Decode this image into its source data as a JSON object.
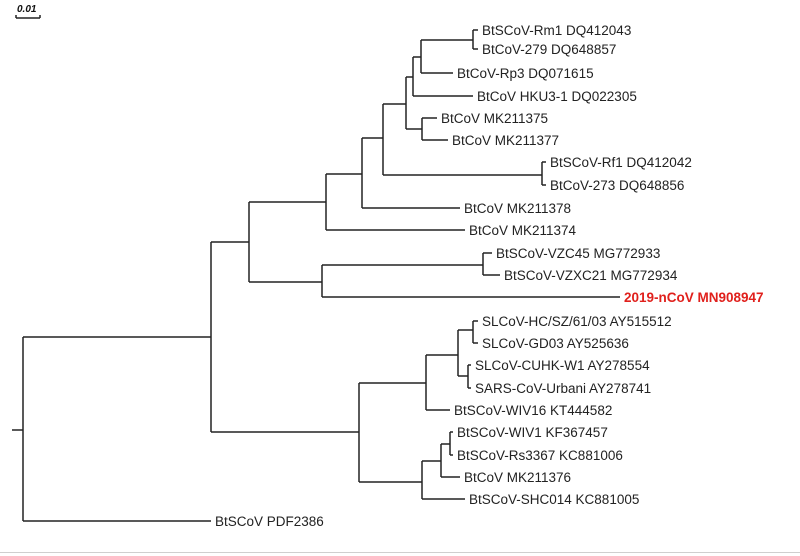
{
  "scale_bar": {
    "label": "0.01",
    "value": 0.01
  },
  "highlight_color": "#e0201c",
  "leaves": [
    {
      "label": "BtSCoV-Rm1 DQ412043"
    },
    {
      "label": "BtCoV-279 DQ648857"
    },
    {
      "label": "BtCoV-Rp3 DQ071615"
    },
    {
      "label": "BtCoV HKU3-1 DQ022305"
    },
    {
      "label": "BtCoV MK211375"
    },
    {
      "label": "BtCoV MK211377"
    },
    {
      "label": "BtSCoV-Rf1 DQ412042"
    },
    {
      "label": "BtCoV-273 DQ648856"
    },
    {
      "label": "BtCoV MK211378"
    },
    {
      "label": "BtCoV MK211374"
    },
    {
      "label": "BtSCoV-VZC45 MG772933"
    },
    {
      "label": "BtSCoV-VZXC21 MG772934"
    },
    {
      "label": "2019-nCoV MN908947",
      "highlight": true
    },
    {
      "label": "SLCoV-HC/SZ/61/03 AY515512"
    },
    {
      "label": "SLCoV-GD03 AY525636"
    },
    {
      "label": "SLCoV-CUHK-W1 AY278554"
    },
    {
      "label": "SARS-CoV-Urbani AY278741"
    },
    {
      "label": "BtSCoV-WIV16 KT444582"
    },
    {
      "label": "BtSCoV-WIV1 KF367457"
    },
    {
      "label": "BtSCoV-Rs3367 KC881006"
    },
    {
      "label": "BtCoV MK211376"
    },
    {
      "label": "BtSCoV-SHC014 KC881005"
    },
    {
      "label": "BtSCoV PDF2386"
    }
  ]
}
